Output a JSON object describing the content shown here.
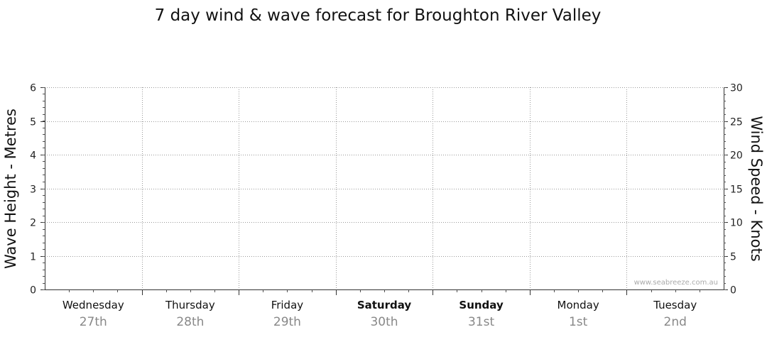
{
  "chart_data": {
    "type": "line",
    "title": "7 day wind & wave forecast for Broughton River Valley",
    "ylabel_left": "Wave Height - Metres",
    "ylabel_right": "Wind Speed - Knots",
    "ylim_left": [
      0,
      6
    ],
    "yticks_left": [
      "0",
      "1",
      "2",
      "3",
      "4",
      "5",
      "6"
    ],
    "ylim_right": [
      0,
      30
    ],
    "yticks_right": [
      "0",
      "5",
      "10",
      "15",
      "20",
      "25",
      "30"
    ],
    "days": [
      {
        "day": "Wednesday",
        "date": "27th",
        "bold": false
      },
      {
        "day": "Thursday",
        "date": "28th",
        "bold": false
      },
      {
        "day": "Friday",
        "date": "29th",
        "bold": false
      },
      {
        "day": "Saturday",
        "date": "30th",
        "bold": true
      },
      {
        "day": "Sunday",
        "date": "31st",
        "bold": true
      },
      {
        "day": "Monday",
        "date": "1st",
        "bold": false
      },
      {
        "day": "Tuesday",
        "date": "2nd",
        "bold": false
      }
    ],
    "series": [],
    "grid": true,
    "watermark": "www.seabreeze.com.au"
  }
}
